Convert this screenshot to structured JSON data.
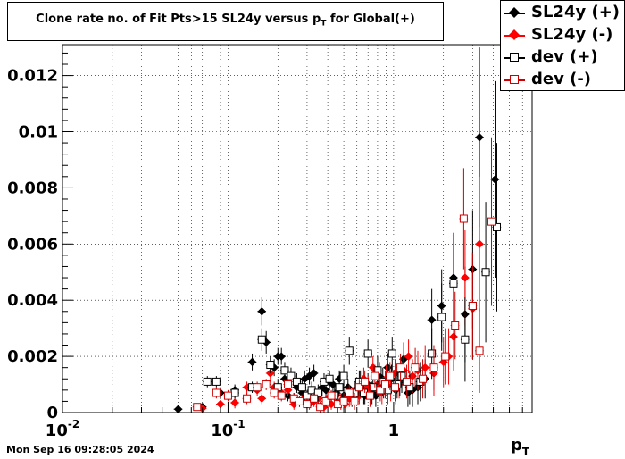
{
  "title": "Clone rate no. of Fit Pts>15 SL24y versus p_T for Global(+)",
  "timestamp": "Mon Sep 16 09:28:05 2024",
  "chart_data": {
    "type": "scatter",
    "title": "Clone rate no. of Fit Pts>15 SL24y versus p_T for Global(+)",
    "xlabel": "p_T",
    "ylabel": "",
    "xscale": "log",
    "xlim": [
      0.01,
      6.86
    ],
    "ylim": [
      0,
      0.0131
    ],
    "grid": true,
    "legend_position": "top-right",
    "y_ticks": [
      "0",
      "0.002",
      "0.004",
      "0.006",
      "0.008",
      "0.01",
      "0.012"
    ],
    "x_ticks": [
      {
        "base": "10",
        "exp": "-2",
        "value": 0.01
      },
      {
        "base": "10",
        "exp": "-1",
        "value": 0.1
      },
      {
        "base": "1",
        "exp": "",
        "value": 1
      }
    ],
    "series": [
      {
        "name": "SL24y (+)",
        "color": "#000000",
        "marker": "diamond",
        "filled": true,
        "points": [
          [
            0.05,
            0.00012,
            8e-05
          ],
          [
            0.07,
            0.0002,
            0.0001
          ],
          [
            0.09,
            0.0007,
            0.0002
          ],
          [
            0.11,
            0.0008,
            0.0002
          ],
          [
            0.14,
            0.0018,
            0.0003
          ],
          [
            0.16,
            0.0036,
            0.0005
          ],
          [
            0.17,
            0.0025,
            0.0004
          ],
          [
            0.19,
            0.0016,
            0.0003
          ],
          [
            0.2,
            0.002,
            0.0003
          ],
          [
            0.21,
            0.002,
            0.0003
          ],
          [
            0.22,
            0.0012,
            0.0003
          ],
          [
            0.23,
            0.0006,
            0.0002
          ],
          [
            0.25,
            0.0005,
            0.0002
          ],
          [
            0.26,
            0.0009,
            0.0002
          ],
          [
            0.28,
            0.0007,
            0.0002
          ],
          [
            0.29,
            0.0012,
            0.0003
          ],
          [
            0.31,
            0.0013,
            0.0003
          ],
          [
            0.33,
            0.0014,
            0.0003
          ],
          [
            0.35,
            0.0005,
            0.0002
          ],
          [
            0.37,
            0.0009,
            0.0003
          ],
          [
            0.39,
            0.0008,
            0.0003
          ],
          [
            0.41,
            0.0011,
            0.0003
          ],
          [
            0.43,
            0.001,
            0.0003
          ],
          [
            0.45,
            0.0007,
            0.0003
          ],
          [
            0.47,
            0.0012,
            0.0003
          ],
          [
            0.5,
            0.0006,
            0.0003
          ],
          [
            0.53,
            0.0009,
            0.0003
          ],
          [
            0.56,
            0.0005,
            0.0003
          ],
          [
            0.6,
            0.0008,
            0.0003
          ],
          [
            0.63,
            0.0011,
            0.0004
          ],
          [
            0.67,
            0.0006,
            0.0003
          ],
          [
            0.7,
            0.001,
            0.0004
          ],
          [
            0.74,
            0.0007,
            0.0004
          ],
          [
            0.78,
            0.0006,
            0.0004
          ],
          [
            0.82,
            0.0013,
            0.0005
          ],
          [
            0.87,
            0.0009,
            0.0004
          ],
          [
            0.92,
            0.0016,
            0.0005
          ],
          [
            0.97,
            0.0012,
            0.0005
          ],
          [
            1.03,
            0.0008,
            0.0005
          ],
          [
            1.09,
            0.0011,
            0.0005
          ],
          [
            1.15,
            0.0019,
            0.0006
          ],
          [
            1.22,
            0.0007,
            0.0005
          ],
          [
            1.3,
            0.0008,
            0.0006
          ],
          [
            1.4,
            0.0009,
            0.0006
          ],
          [
            1.55,
            0.0012,
            0.0007
          ],
          [
            1.7,
            0.0033,
            0.0011
          ],
          [
            1.95,
            0.0038,
            0.0013
          ],
          [
            2.3,
            0.0048,
            0.0016
          ],
          [
            2.7,
            0.0035,
            0.0017
          ],
          [
            3.0,
            0.0051,
            0.0021
          ],
          [
            3.3,
            0.0098,
            0.0032
          ],
          [
            4.1,
            0.0083,
            0.0035
          ]
        ]
      },
      {
        "name": "SL24y (-)",
        "color": "#ff0000",
        "marker": "diamond",
        "filled": true,
        "points": [
          [
            0.07,
            0.00015,
            0.0001
          ],
          [
            0.09,
            0.0003,
            0.0001
          ],
          [
            0.11,
            0.00035,
            0.0002
          ],
          [
            0.13,
            0.0009,
            0.0002
          ],
          [
            0.15,
            0.0008,
            0.0002
          ],
          [
            0.16,
            0.0005,
            0.0002
          ],
          [
            0.18,
            0.0014,
            0.0003
          ],
          [
            0.19,
            0.0009,
            0.0002
          ],
          [
            0.21,
            0.0007,
            0.0002
          ],
          [
            0.23,
            0.0008,
            0.0002
          ],
          [
            0.25,
            0.0003,
            0.0002
          ],
          [
            0.27,
            0.0004,
            0.0002
          ],
          [
            0.29,
            0.0006,
            0.0002
          ],
          [
            0.31,
            0.0003,
            0.0002
          ],
          [
            0.33,
            0.0004,
            0.0002
          ],
          [
            0.35,
            0.0005,
            0.0002
          ],
          [
            0.38,
            0.0002,
            0.0002
          ],
          [
            0.4,
            0.0005,
            0.0002
          ],
          [
            0.42,
            0.0003,
            0.0002
          ],
          [
            0.45,
            0.0006,
            0.0002
          ],
          [
            0.48,
            0.0004,
            0.0003
          ],
          [
            0.51,
            0.0003,
            0.0003
          ],
          [
            0.54,
            0.0005,
            0.0003
          ],
          [
            0.58,
            0.0008,
            0.0003
          ],
          [
            0.62,
            0.0006,
            0.0003
          ],
          [
            0.66,
            0.0012,
            0.0004
          ],
          [
            0.7,
            0.0009,
            0.0004
          ],
          [
            0.75,
            0.0016,
            0.0004
          ],
          [
            0.8,
            0.001,
            0.0004
          ],
          [
            0.85,
            0.0007,
            0.0004
          ],
          [
            0.9,
            0.0012,
            0.0005
          ],
          [
            0.96,
            0.0009,
            0.0005
          ],
          [
            1.02,
            0.0014,
            0.0005
          ],
          [
            1.08,
            0.001,
            0.0005
          ],
          [
            1.15,
            0.0015,
            0.0005
          ],
          [
            1.23,
            0.002,
            0.0006
          ],
          [
            1.3,
            0.0013,
            0.0006
          ],
          [
            1.4,
            0.0015,
            0.0007
          ],
          [
            1.55,
            0.0016,
            0.0008
          ],
          [
            1.75,
            0.0014,
            0.0008
          ],
          [
            2.0,
            0.0018,
            0.0009
          ],
          [
            2.15,
            0.002,
            0.001
          ],
          [
            2.3,
            0.0027,
            0.0012
          ],
          [
            2.7,
            0.0048,
            0.0017
          ],
          [
            3.0,
            0.0037,
            0.0018
          ],
          [
            3.3,
            0.006,
            0.0024
          ]
        ]
      },
      {
        "name": "dev (+)",
        "color": "#000000",
        "marker": "square",
        "filled": false,
        "points": [
          [
            0.075,
            0.0011,
            0.0002
          ],
          [
            0.085,
            0.0011,
            0.0002
          ],
          [
            0.11,
            0.0007,
            0.0002
          ],
          [
            0.14,
            0.0009,
            0.0002
          ],
          [
            0.16,
            0.0026,
            0.0004
          ],
          [
            0.18,
            0.0017,
            0.0003
          ],
          [
            0.2,
            0.0009,
            0.0003
          ],
          [
            0.22,
            0.0015,
            0.0003
          ],
          [
            0.24,
            0.0013,
            0.0003
          ],
          [
            0.26,
            0.0011,
            0.0003
          ],
          [
            0.28,
            0.0009,
            0.0003
          ],
          [
            0.3,
            0.0006,
            0.0002
          ],
          [
            0.32,
            0.0008,
            0.0003
          ],
          [
            0.35,
            0.0007,
            0.0003
          ],
          [
            0.38,
            0.0011,
            0.0003
          ],
          [
            0.41,
            0.0012,
            0.0003
          ],
          [
            0.44,
            0.0006,
            0.0003
          ],
          [
            0.47,
            0.0009,
            0.0003
          ],
          [
            0.5,
            0.0013,
            0.0004
          ],
          [
            0.54,
            0.0022,
            0.0005
          ],
          [
            0.58,
            0.0007,
            0.0004
          ],
          [
            0.62,
            0.0011,
            0.0004
          ],
          [
            0.66,
            0.0007,
            0.0004
          ],
          [
            0.7,
            0.0021,
            0.0005
          ],
          [
            0.75,
            0.0009,
            0.0004
          ],
          [
            0.8,
            0.0015,
            0.0005
          ],
          [
            0.86,
            0.0011,
            0.0005
          ],
          [
            0.92,
            0.0008,
            0.0005
          ],
          [
            0.98,
            0.0021,
            0.0006
          ],
          [
            1.05,
            0.001,
            0.0005
          ],
          [
            1.12,
            0.0013,
            0.0006
          ],
          [
            1.25,
            0.0009,
            0.0006
          ],
          [
            1.45,
            0.0011,
            0.0007
          ],
          [
            1.7,
            0.0021,
            0.0009
          ],
          [
            1.95,
            0.0034,
            0.0012
          ],
          [
            2.3,
            0.0046,
            0.0015
          ],
          [
            2.7,
            0.0026,
            0.0015
          ],
          [
            3.0,
            0.0038,
            0.0019
          ],
          [
            3.6,
            0.005,
            0.0025
          ],
          [
            4.2,
            0.0066,
            0.003
          ]
        ]
      },
      {
        "name": "dev (-)",
        "color": "#cc0000",
        "marker": "square",
        "filled": false,
        "points": [
          [
            0.065,
            0.0002,
            0.0001
          ],
          [
            0.085,
            0.0007,
            0.0002
          ],
          [
            0.1,
            0.0006,
            0.0002
          ],
          [
            0.13,
            0.0005,
            0.0002
          ],
          [
            0.15,
            0.0009,
            0.0002
          ],
          [
            0.17,
            0.001,
            0.0002
          ],
          [
            0.19,
            0.0007,
            0.0002
          ],
          [
            0.21,
            0.0006,
            0.0002
          ],
          [
            0.23,
            0.001,
            0.0002
          ],
          [
            0.25,
            0.0005,
            0.0002
          ],
          [
            0.27,
            0.0004,
            0.0002
          ],
          [
            0.3,
            0.0003,
            0.0002
          ],
          [
            0.33,
            0.0005,
            0.0002
          ],
          [
            0.36,
            0.0002,
            0.0002
          ],
          [
            0.39,
            0.0004,
            0.0002
          ],
          [
            0.42,
            0.0006,
            0.0002
          ],
          [
            0.46,
            0.0003,
            0.0003
          ],
          [
            0.5,
            0.0004,
            0.0003
          ],
          [
            0.54,
            0.0007,
            0.0003
          ],
          [
            0.58,
            0.0004,
            0.0003
          ],
          [
            0.62,
            0.0009,
            0.0003
          ],
          [
            0.67,
            0.0011,
            0.0004
          ],
          [
            0.72,
            0.0006,
            0.0004
          ],
          [
            0.77,
            0.0013,
            0.0004
          ],
          [
            0.83,
            0.0008,
            0.0004
          ],
          [
            0.89,
            0.001,
            0.0005
          ],
          [
            0.95,
            0.0013,
            0.0005
          ],
          [
            1.02,
            0.0009,
            0.0005
          ],
          [
            1.1,
            0.0016,
            0.0005
          ],
          [
            1.2,
            0.0011,
            0.0006
          ],
          [
            1.35,
            0.0016,
            0.0007
          ],
          [
            1.5,
            0.0012,
            0.0007
          ],
          [
            1.75,
            0.0016,
            0.0008
          ],
          [
            2.05,
            0.002,
            0.001
          ],
          [
            2.35,
            0.0031,
            0.0012
          ],
          [
            2.65,
            0.0069,
            0.0018
          ],
          [
            3.0,
            0.0038,
            0.0019
          ],
          [
            3.3,
            0.0022,
            0.0015
          ],
          [
            3.9,
            0.0068,
            0.003
          ]
        ]
      }
    ]
  }
}
